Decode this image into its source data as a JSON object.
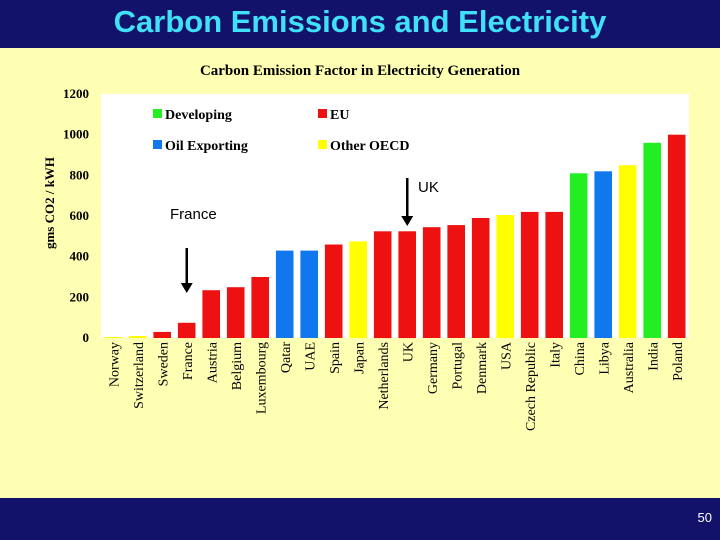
{
  "slide": {
    "title": "Carbon Emissions and Electricity",
    "page_number": "50"
  },
  "colors": {
    "developing": "#22ee22",
    "eu": "#ee1111",
    "oil": "#1177ee",
    "oecd": "#ffff00"
  },
  "chart_data": {
    "type": "bar",
    "title": "Carbon Emission Factor in Electricity Generation",
    "xlabel": "",
    "ylabel": "gms CO2 / kWH",
    "ylim": [
      0,
      1200
    ],
    "yticks": [
      0,
      200,
      400,
      600,
      800,
      1000,
      1200
    ],
    "grid": false,
    "legend_position": "top-center",
    "legend": [
      {
        "name": "Developing",
        "group": "developing"
      },
      {
        "name": "EU",
        "group": "eu"
      },
      {
        "name": "Oil Exporting",
        "group": "oil"
      },
      {
        "name": "Other OECD",
        "group": "oecd"
      }
    ],
    "categories": [
      "Norway",
      "Switzerland",
      "Sweden",
      "France",
      "Austria",
      "Belgium",
      "Luxembourg",
      "Qatar",
      "UAE",
      "Spain",
      "Japan",
      "Netherlands",
      "UK",
      "Germany",
      "Portugal",
      "Denmark",
      "USA",
      "Czech Republic",
      "Italy",
      "China",
      "Libya",
      "Australia",
      "India",
      "Poland"
    ],
    "values": [
      5,
      10,
      30,
      75,
      235,
      250,
      300,
      430,
      430,
      460,
      475,
      525,
      525,
      545,
      555,
      590,
      605,
      620,
      620,
      810,
      820,
      850,
      960,
      1000
    ],
    "groups": [
      "oecd",
      "oecd",
      "eu",
      "eu",
      "eu",
      "eu",
      "eu",
      "oil",
      "oil",
      "eu",
      "oecd",
      "eu",
      "eu",
      "eu",
      "eu",
      "eu",
      "oecd",
      "eu",
      "eu",
      "developing",
      "oil",
      "oecd",
      "developing",
      "eu"
    ],
    "annotations": [
      {
        "text": "France",
        "category": "France"
      },
      {
        "text": "UK",
        "category": "UK"
      }
    ]
  }
}
